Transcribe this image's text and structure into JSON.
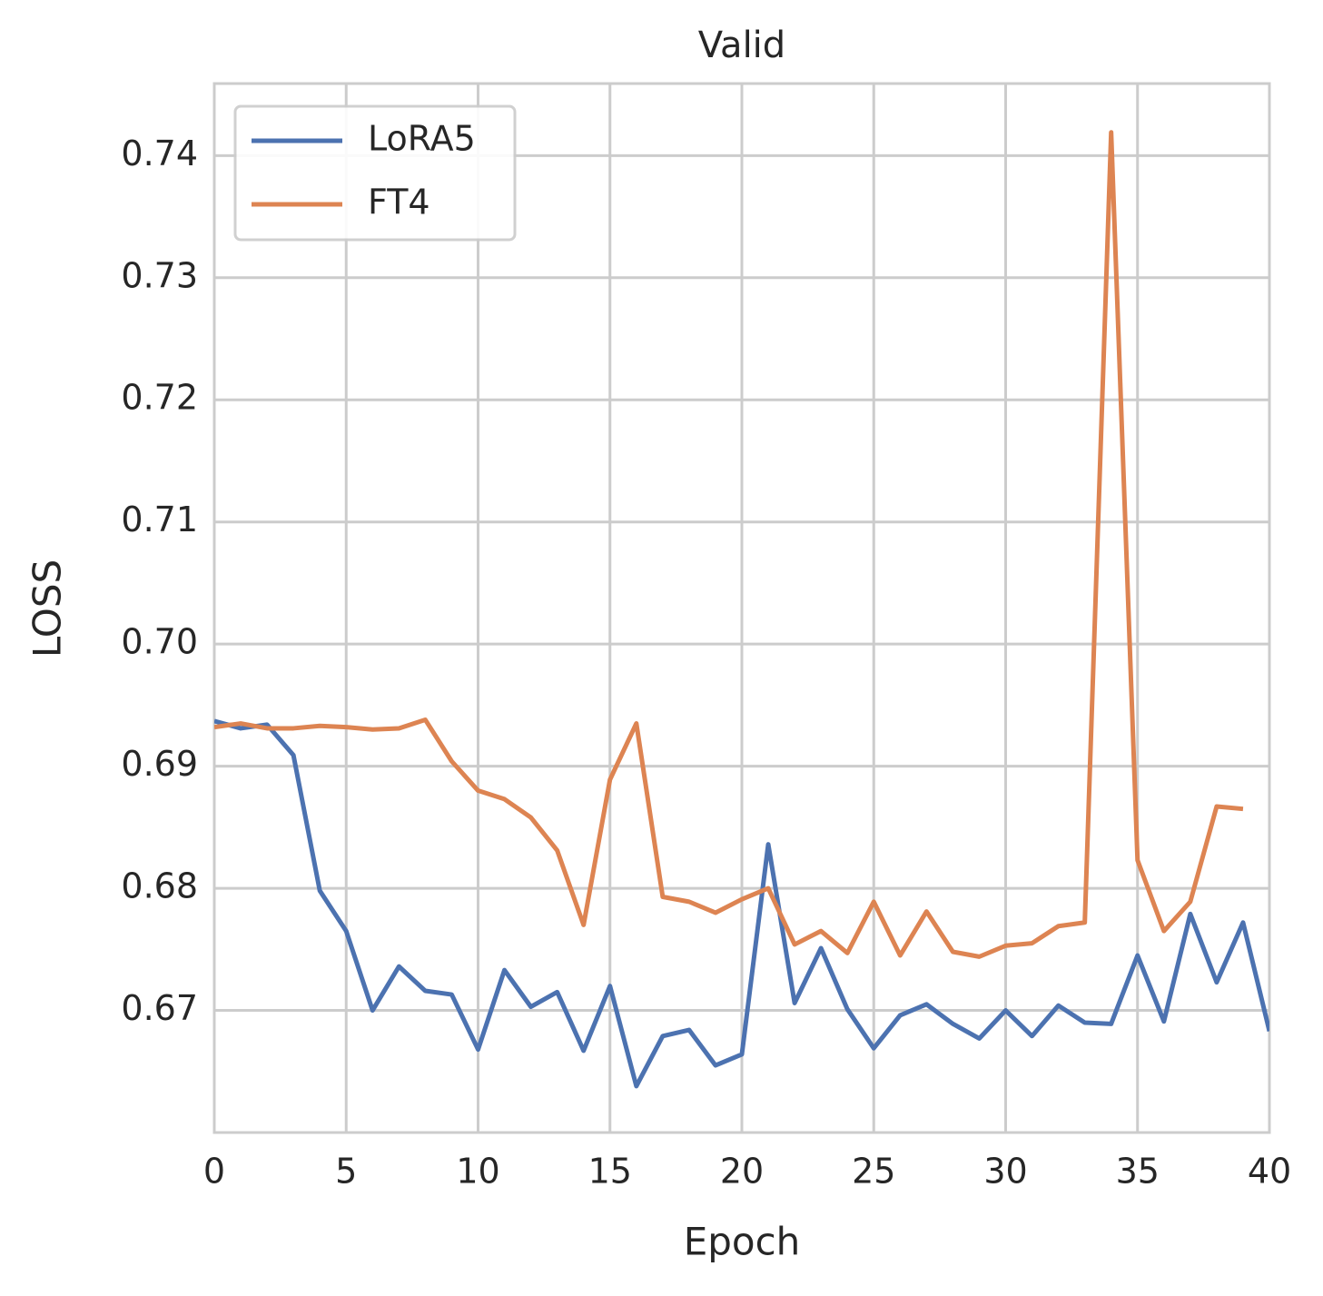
{
  "chart_data": {
    "type": "line",
    "title": "Valid",
    "xlabel": "Epoch",
    "ylabel": "LOSS",
    "x": [
      0,
      1,
      2,
      3,
      4,
      5,
      6,
      7,
      8,
      9,
      10,
      11,
      12,
      13,
      14,
      15,
      16,
      17,
      18,
      19,
      20,
      21,
      22,
      23,
      24,
      25,
      26,
      27,
      28,
      29,
      30,
      31,
      32,
      33,
      34,
      35,
      36,
      37,
      38,
      39,
      40
    ],
    "series": [
      {
        "name": "LoRA5",
        "color": "#4c72b0",
        "values": [
          0.6937,
          0.6931,
          0.6934,
          0.6909,
          0.6798,
          0.6765,
          0.67,
          0.6736,
          0.6716,
          0.6713,
          0.6668,
          0.6733,
          0.6703,
          0.6715,
          0.6667,
          0.672,
          0.6638,
          0.6679,
          0.6684,
          0.6655,
          0.6664,
          0.6836,
          0.6706,
          0.6751,
          0.6701,
          0.6669,
          0.6696,
          0.6705,
          0.6689,
          0.6677,
          0.67,
          0.6679,
          0.6704,
          0.669,
          0.6689,
          0.6745,
          0.6691,
          0.6779,
          0.6723,
          0.6772,
          0.6683
        ]
      },
      {
        "name": "FT4",
        "color": "#dd8452",
        "values": [
          0.6932,
          0.6935,
          0.6931,
          0.6931,
          0.6933,
          0.6932,
          0.693,
          0.6931,
          0.6938,
          0.6904,
          0.688,
          0.6873,
          0.6858,
          0.6831,
          0.677,
          0.6889,
          0.6935,
          0.6793,
          0.6789,
          0.678,
          0.6791,
          0.68,
          0.6754,
          0.6765,
          0.6747,
          0.6789,
          0.6745,
          0.6781,
          0.6748,
          0.6744,
          0.6753,
          0.6755,
          0.6769,
          0.6772,
          0.7419,
          0.6823,
          0.6765,
          0.6789,
          0.6867,
          0.6865,
          null
        ]
      }
    ],
    "xlim": [
      0,
      40
    ],
    "xticks": [
      0,
      5,
      10,
      15,
      20,
      25,
      30,
      35,
      40
    ],
    "ylim": [
      0.66,
      0.7459
    ],
    "yticks": [
      {
        "value": 0.67,
        "label": "0.67"
      },
      {
        "value": 0.68,
        "label": "0.68"
      },
      {
        "value": 0.69,
        "label": "0.69"
      },
      {
        "value": 0.7,
        "label": "0.70"
      },
      {
        "value": 0.71,
        "label": "0.71"
      },
      {
        "value": 0.72,
        "label": "0.72"
      },
      {
        "value": 0.73,
        "label": "0.73"
      },
      {
        "value": 0.74,
        "label": "0.74"
      }
    ],
    "grid": true,
    "legend": "upper left"
  }
}
